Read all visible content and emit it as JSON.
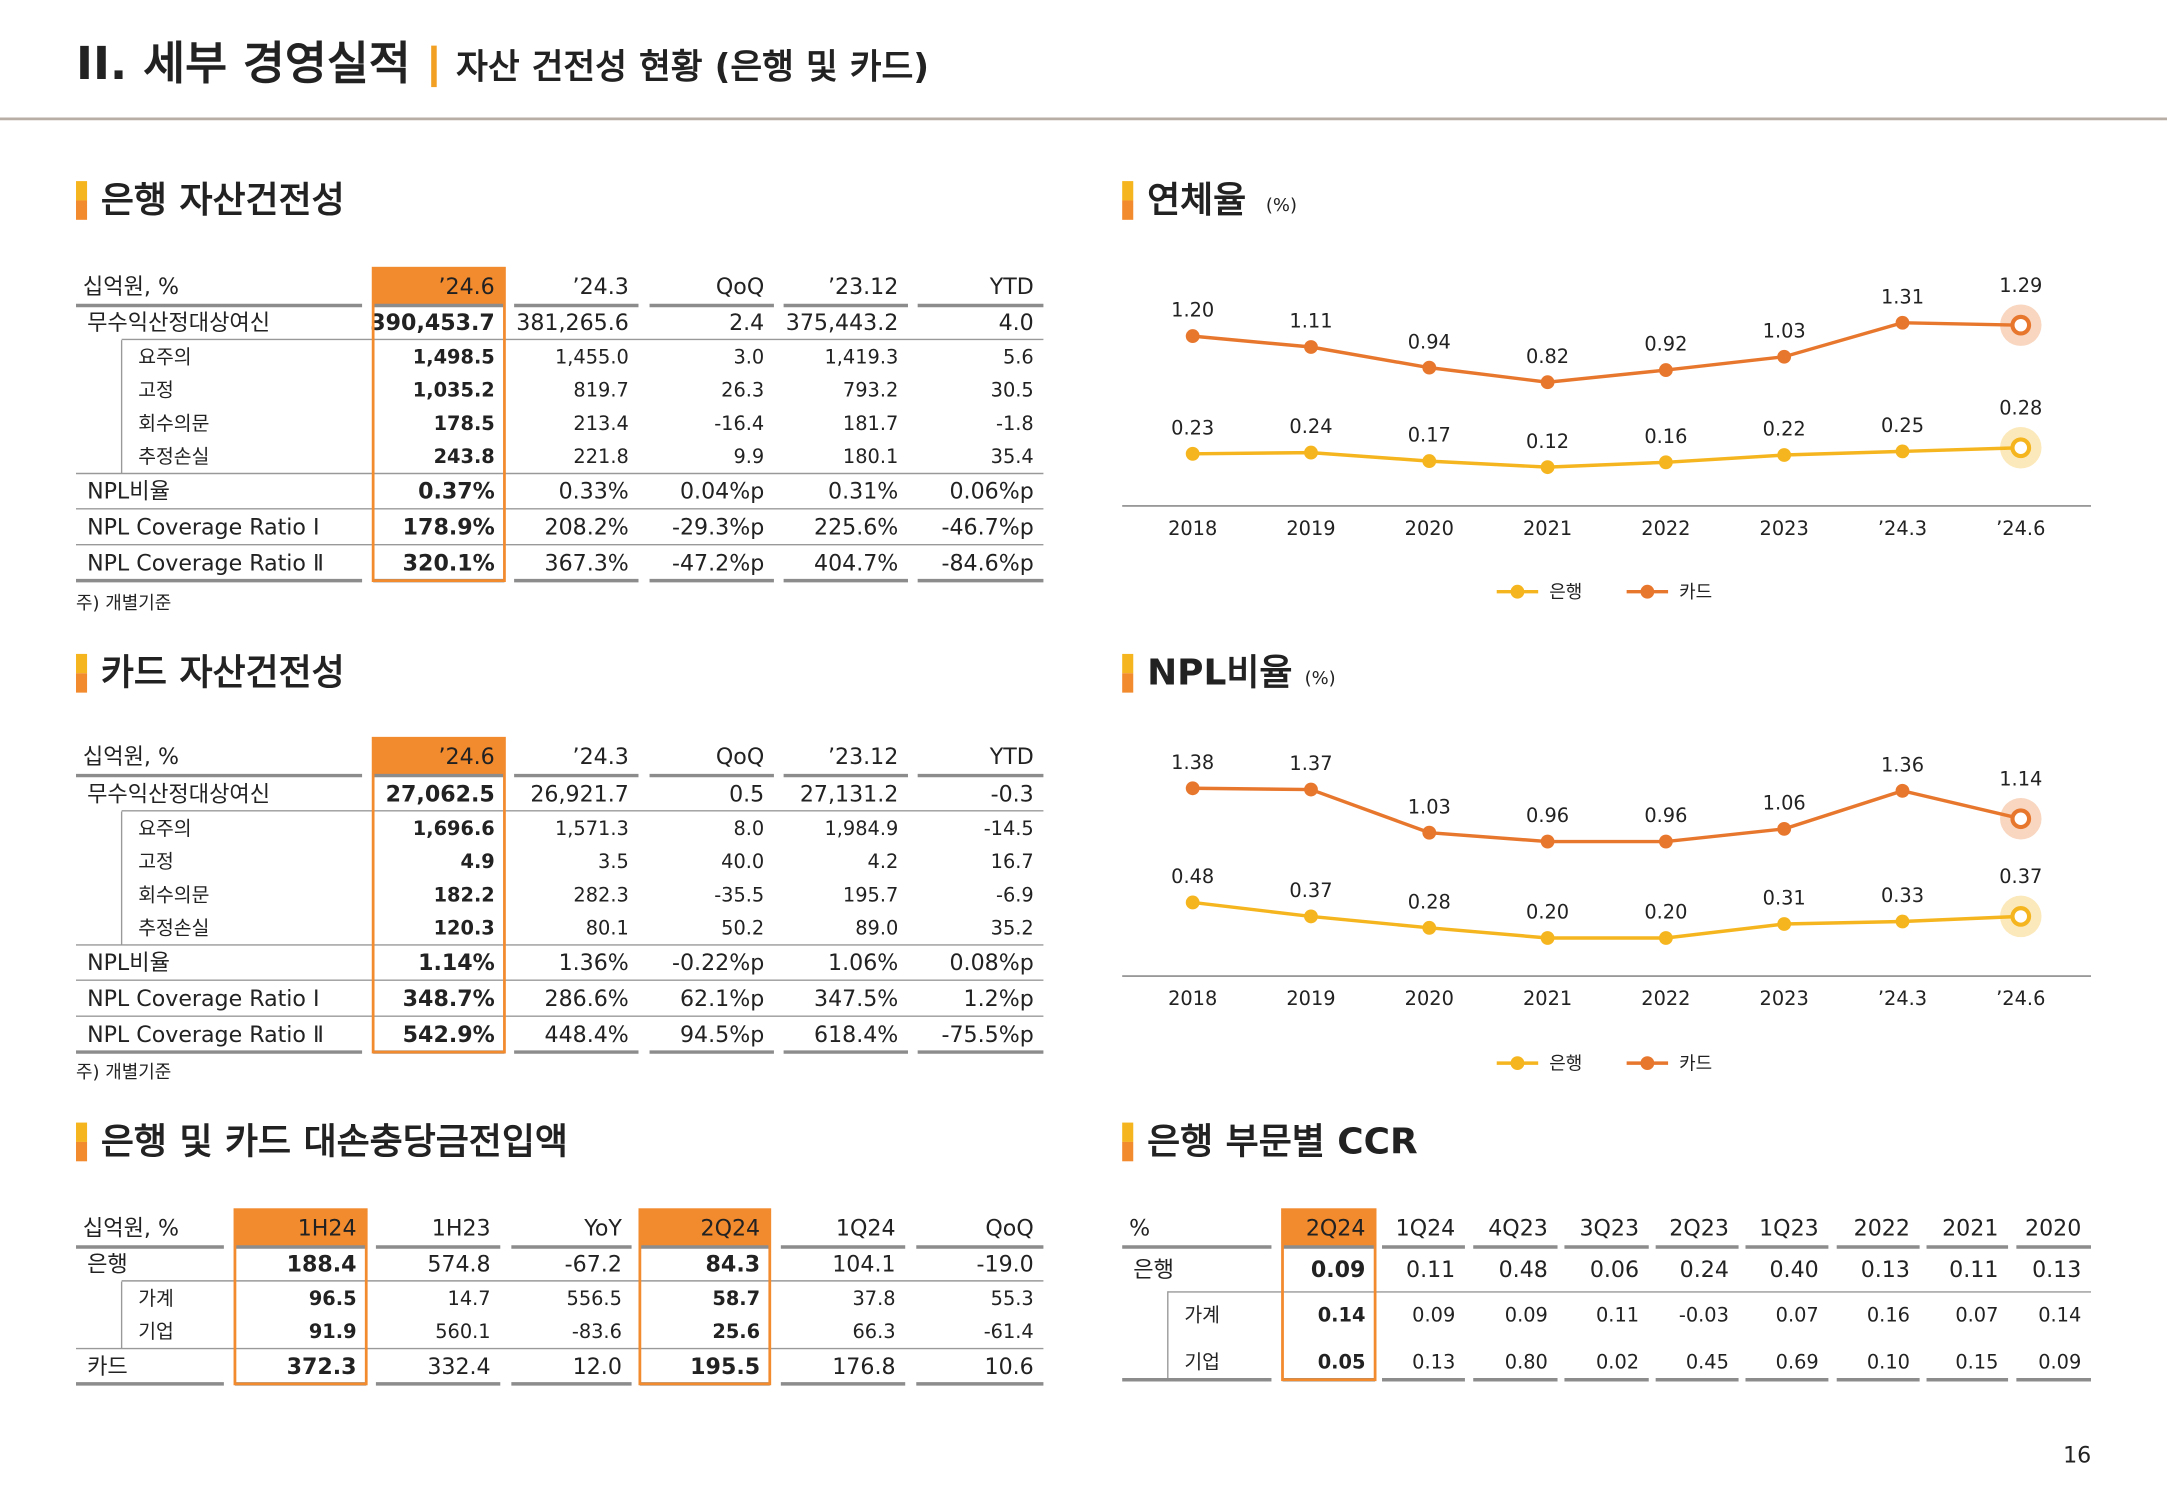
{
  "header": {
    "title": "II. 세부 경영실적",
    "subtitle": "자산 건전성 현황 (은행 및 카드)"
  },
  "tables": [
    {
      "title": "은행 자산건전성",
      "highlight": [
        1
      ],
      "note": "주) 개별기준",
      "columns": [
        "십억원, %",
        "’24.6",
        "’24.3",
        "QoQ",
        "’23.12",
        "YTD"
      ],
      "rows": [
        {
          "cells": [
            "무수익산정대상여신",
            "390,453.7",
            "381,265.6",
            "2.4",
            "375,443.2",
            "4.0"
          ],
          "sub": [
            [
              "요주의",
              "1,498.5",
              "1,455.0",
              "3.0",
              "1,419.3",
              "5.6"
            ],
            [
              "고정",
              "1,035.2",
              "819.7",
              "26.3",
              "793.2",
              "30.5"
            ],
            [
              "회수의문",
              "178.5",
              "213.4",
              "-16.4",
              "181.7",
              "-1.8"
            ],
            [
              "추정손실",
              "243.8",
              "221.8",
              "9.9",
              "180.1",
              "35.4"
            ]
          ]
        },
        {
          "cells": [
            "NPL비율",
            "0.37%",
            "0.33%",
            "0.04%p",
            "0.31%",
            "0.06%p"
          ]
        },
        {
          "cells": [
            "NPL Coverage Ratio Ⅰ",
            "178.9%",
            "208.2%",
            "-29.3%p",
            "225.6%",
            "-46.7%p"
          ]
        },
        {
          "cells": [
            "NPL Coverage Ratio Ⅱ",
            "320.1%",
            "367.3%",
            "-47.2%p",
            "404.7%",
            "-84.6%p"
          ]
        }
      ]
    },
    {
      "title": "카드 자산건전성",
      "highlight": [
        1
      ],
      "note": "주) 개별기준",
      "columns": [
        "십억원, %",
        "’24.6",
        "’24.3",
        "QoQ",
        "’23.12",
        "YTD"
      ],
      "rows": [
        {
          "cells": [
            "무수익산정대상여신",
            "27,062.5",
            "26,921.7",
            "0.5",
            "27,131.2",
            "-0.3"
          ],
          "sub": [
            [
              "요주의",
              "1,696.6",
              "1,571.3",
              "8.0",
              "1,984.9",
              "-14.5"
            ],
            [
              "고정",
              "4.9",
              "3.5",
              "40.0",
              "4.2",
              "16.7"
            ],
            [
              "회수의문",
              "182.2",
              "282.3",
              "-35.5",
              "195.7",
              "-6.9"
            ],
            [
              "추정손실",
              "120.3",
              "80.1",
              "50.2",
              "89.0",
              "35.2"
            ]
          ]
        },
        {
          "cells": [
            "NPL비율",
            "1.14%",
            "1.36%",
            "-0.22%p",
            "1.06%",
            "0.08%p"
          ]
        },
        {
          "cells": [
            "NPL Coverage Ratio Ⅰ",
            "348.7%",
            "286.6%",
            "62.1%p",
            "347.5%",
            "1.2%p"
          ]
        },
        {
          "cells": [
            "NPL Coverage Ratio Ⅱ",
            "542.9%",
            "448.4%",
            "94.5%p",
            "618.4%",
            "-75.5%p"
          ]
        }
      ]
    },
    {
      "title": "은행 및 카드 대손충당금전입액",
      "highlight": [
        1,
        4
      ],
      "columns": [
        "십억원, %",
        "1H24",
        "1H23",
        "YoY",
        "2Q24",
        "1Q24",
        "QoQ"
      ],
      "rows": [
        {
          "cells": [
            "은행",
            "188.4",
            "574.8",
            "-67.2",
            "84.3",
            "104.1",
            "-19.0"
          ],
          "sub": [
            [
              "가계",
              "96.5",
              "14.7",
              "556.5",
              "58.7",
              "37.8",
              "55.3"
            ],
            [
              "기업",
              "91.9",
              "560.1",
              "-83.6",
              "25.6",
              "66.3",
              "-61.4"
            ]
          ]
        },
        {
          "cells": [
            "카드",
            "372.3",
            "332.4",
            "12.0",
            "195.5",
            "176.8",
            "10.6"
          ]
        }
      ]
    },
    {
      "title": "은행 부문별 CCR",
      "highlight": [
        1
      ],
      "columns": [
        "%",
        "2Q24",
        "1Q24",
        "4Q23",
        "3Q23",
        "2Q23",
        "1Q23",
        "2022",
        "2021",
        "2020"
      ],
      "rows": [
        {
          "cells": [
            "은행",
            "0.09",
            "0.11",
            "0.48",
            "0.06",
            "0.24",
            "0.40",
            "0.13",
            "0.11",
            "0.13"
          ],
          "sub": [
            [
              "가계",
              "0.14",
              "0.09",
              "0.09",
              "0.11",
              "-0.03",
              "0.07",
              "0.16",
              "0.07",
              "0.14"
            ],
            [
              "기업",
              "0.05",
              "0.13",
              "0.80",
              "0.02",
              "0.45",
              "0.69",
              "0.10",
              "0.15",
              "0.09"
            ]
          ]
        }
      ]
    }
  ],
  "chart_data": [
    {
      "type": "line",
      "title": "연체율",
      "unit": "(%)",
      "categories": [
        "2018",
        "2019",
        "2020",
        "2021",
        "2022",
        "2023",
        "’24.3",
        "’24.6"
      ],
      "ylim": [
        -0.2,
        1.6
      ],
      "series": [
        {
          "name": "은행",
          "color": "#f5b51e",
          "values": [
            0.23,
            0.24,
            0.17,
            0.12,
            0.16,
            0.22,
            0.25,
            0.28
          ],
          "value_labels": [
            "0.23",
            "0.24",
            "0.17",
            "0.12",
            "0.16",
            "0.22",
            "0.25",
            "0.28"
          ]
        },
        {
          "name": "카드",
          "color": "#e8772e",
          "values": [
            1.2,
            1.11,
            0.94,
            0.82,
            0.92,
            1.03,
            1.31,
            1.29
          ],
          "value_labels": [
            "1.20",
            "1.11",
            "0.94",
            "0.82",
            "0.92",
            "1.03",
            "1.31",
            "1.29"
          ]
        }
      ]
    },
    {
      "type": "line",
      "title": "NPL비율",
      "unit": "(%)",
      "categories": [
        "2018",
        "2019",
        "2020",
        "2021",
        "2022",
        "2023",
        "’24.3",
        "’24.6"
      ],
      "ylim": [
        -0.1,
        1.6
      ],
      "series": [
        {
          "name": "은행",
          "color": "#f5b51e",
          "values": [
            0.48,
            0.37,
            0.28,
            0.2,
            0.2,
            0.31,
            0.33,
            0.37
          ],
          "value_labels": [
            "0.48",
            "0.37",
            "0.28",
            "0.20",
            "0.20",
            "0.31",
            "0.33",
            "0.37"
          ]
        },
        {
          "name": "카드",
          "color": "#e8772e",
          "values": [
            1.38,
            1.37,
            1.03,
            0.96,
            0.96,
            1.06,
            1.36,
            1.14
          ],
          "value_labels": [
            "1.38",
            "1.37",
            "1.03",
            "0.96",
            "0.96",
            "1.06",
            "1.36",
            "1.14"
          ]
        }
      ]
    }
  ],
  "page_number": "16"
}
